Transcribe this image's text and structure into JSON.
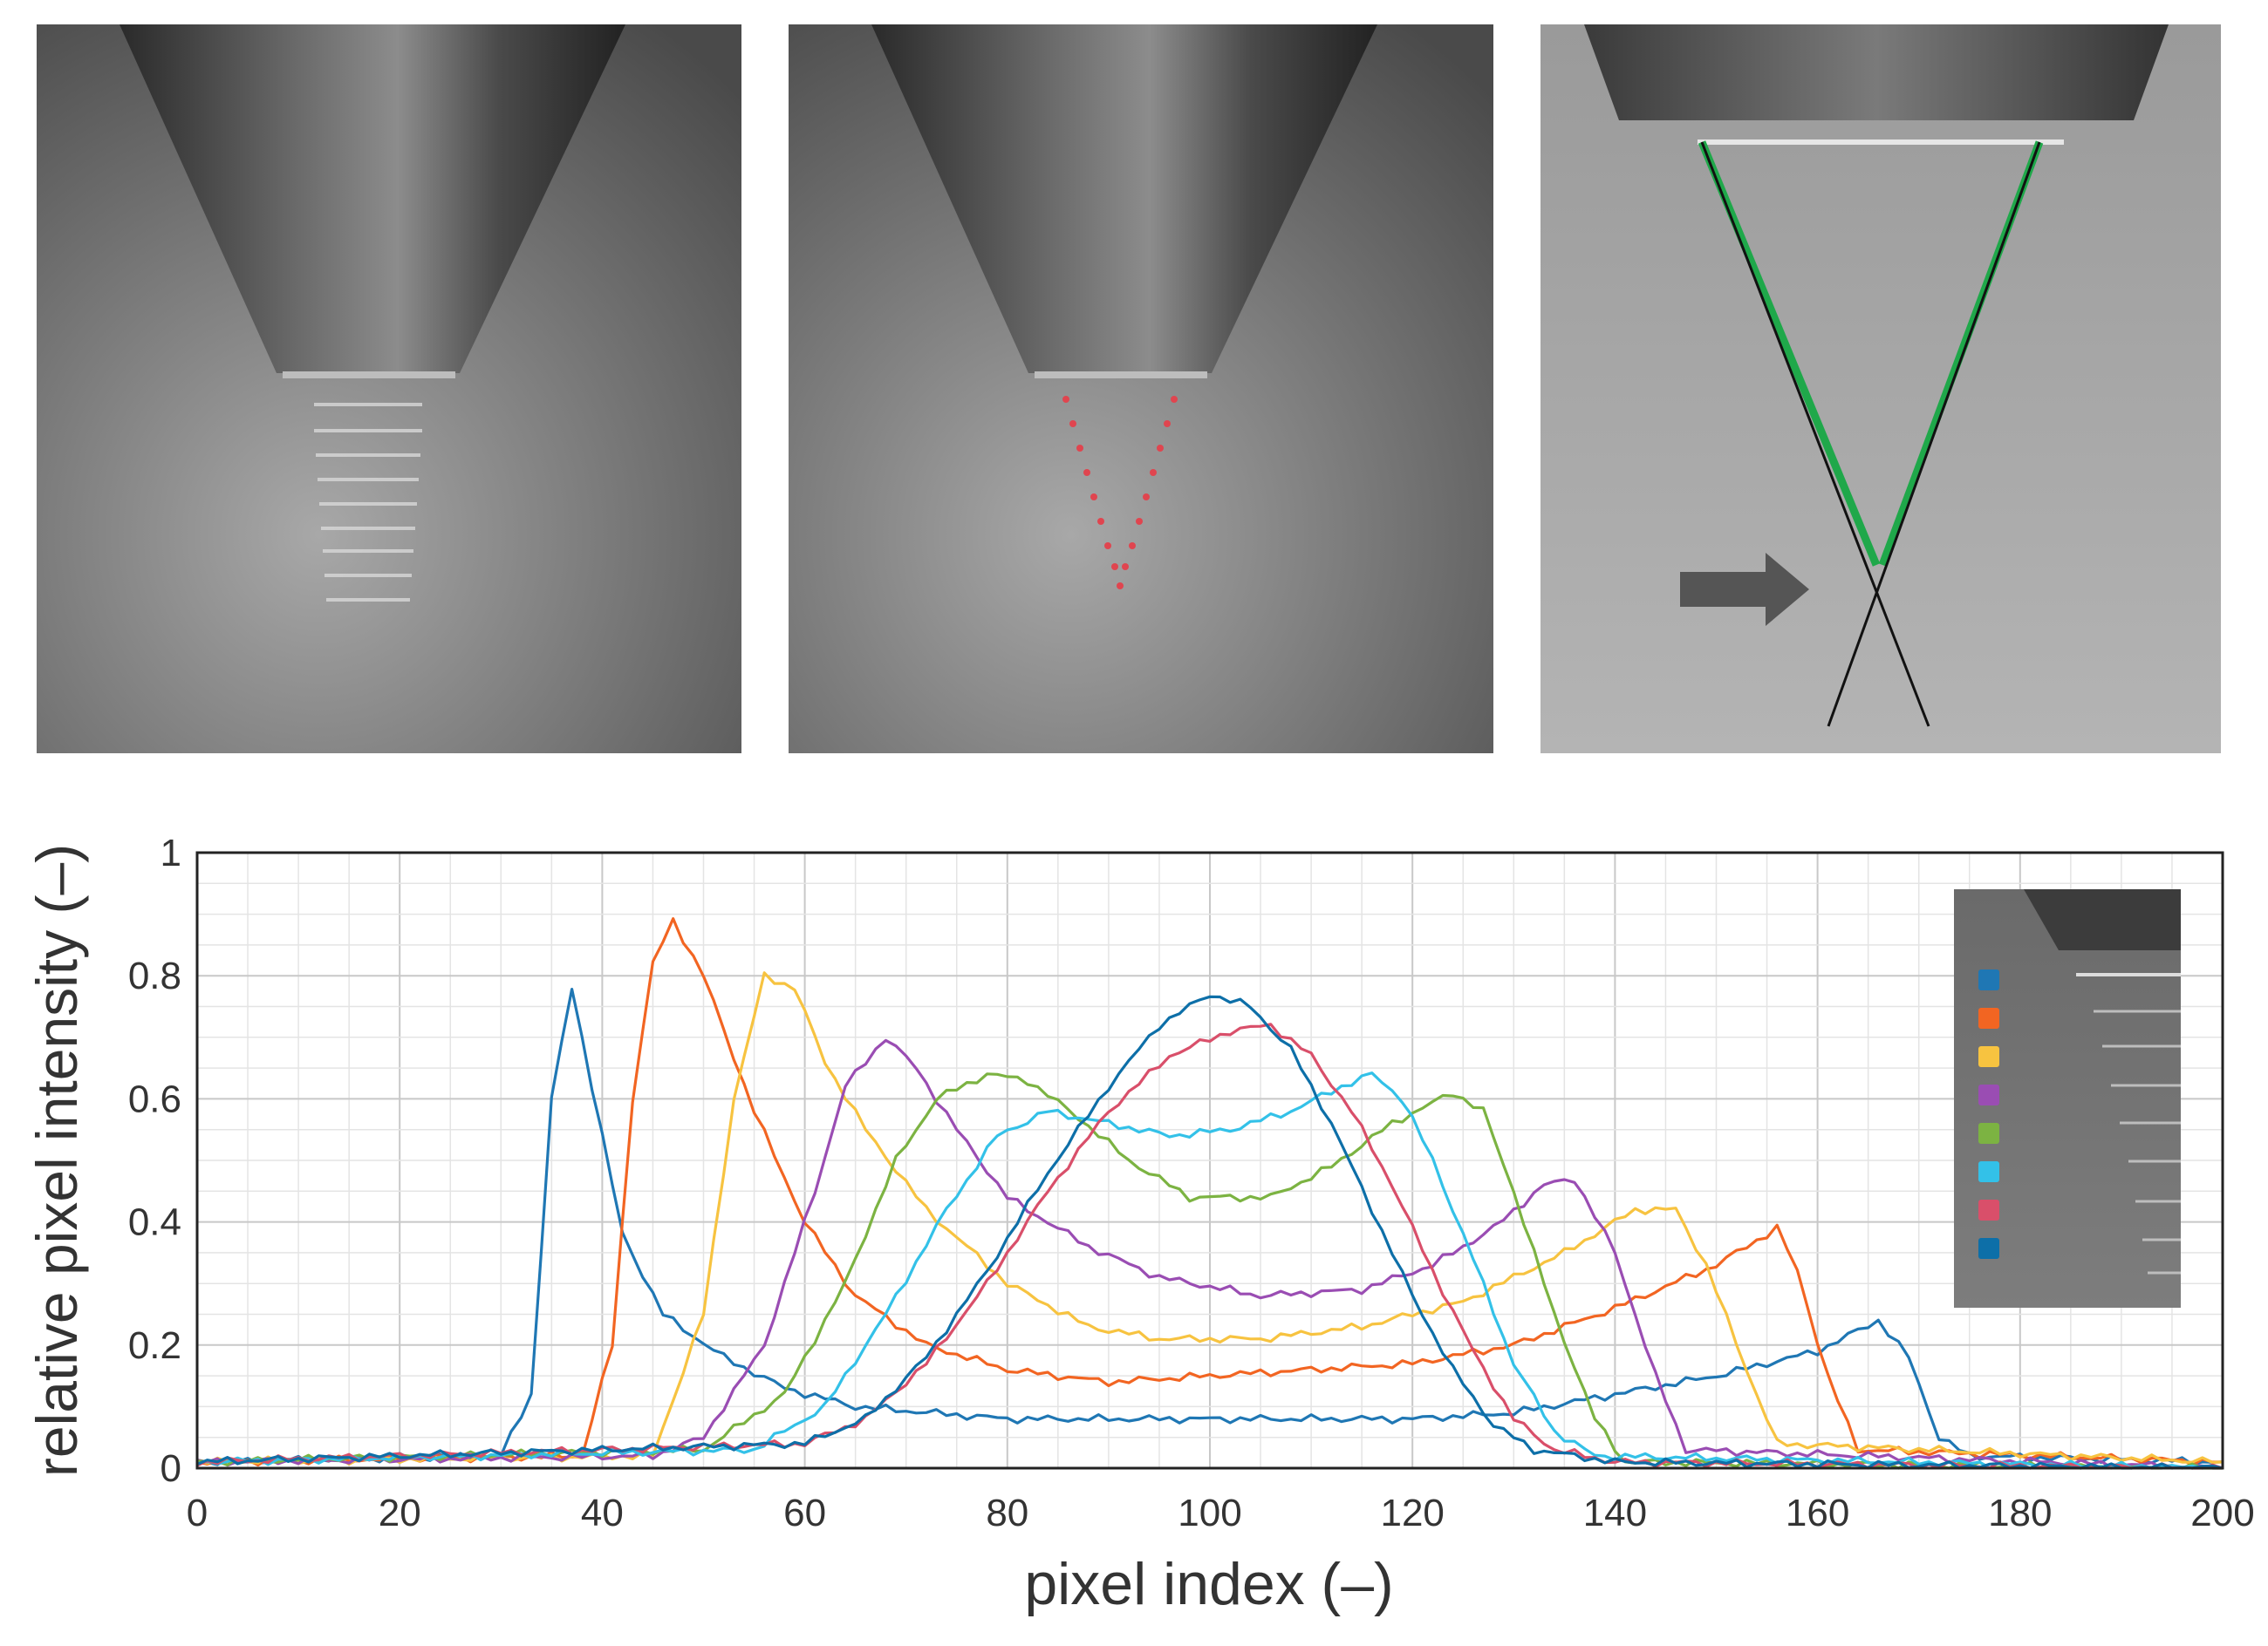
{
  "panels": [
    {
      "name": "nozzle-horizontal-slices",
      "description_icon": "nozzle-photo"
    },
    {
      "name": "nozzle-dotted-edges",
      "description_icon": "nozzle-photo"
    },
    {
      "name": "nozzle-fitted-cone-lines",
      "description_icon": "nozzle-photo"
    }
  ],
  "colors": {
    "blue": "#1f77b4",
    "orange": "#f26522",
    "yellow": "#f7c340",
    "purple": "#9a4db3",
    "green": "#7cb342",
    "cyan": "#33c1e8",
    "red": "#d94f6a",
    "darkblue": "#0d6fa8",
    "fit_line": "#1fa84a",
    "edge_dots": "#e0454f"
  },
  "chart_data": {
    "type": "line",
    "xlabel": "pixel index (–)",
    "ylabel": "relative pixel intensity (–)",
    "xlim": [
      0,
      200
    ],
    "ylim": [
      0,
      1
    ],
    "xticks": [
      "0",
      "20",
      "40",
      "60",
      "80",
      "100",
      "120",
      "140",
      "160",
      "180",
      "200"
    ],
    "yticks": [
      "0",
      "0.2",
      "0.4",
      "0.6",
      "0.8",
      "1"
    ],
    "grid": true,
    "minor_grid": true,
    "legend": "inset-right",
    "series": [
      {
        "color": "#1f77b4",
        "points": [
          [
            0,
            0.01
          ],
          [
            30,
            0.02
          ],
          [
            33,
            0.12
          ],
          [
            35,
            0.6
          ],
          [
            37,
            0.78
          ],
          [
            39,
            0.62
          ],
          [
            42,
            0.38
          ],
          [
            46,
            0.25
          ],
          [
            52,
            0.18
          ],
          [
            58,
            0.13
          ],
          [
            65,
            0.1
          ],
          [
            80,
            0.08
          ],
          [
            100,
            0.08
          ],
          [
            120,
            0.08
          ],
          [
            130,
            0.09
          ],
          [
            140,
            0.12
          ],
          [
            150,
            0.15
          ],
          [
            160,
            0.19
          ],
          [
            166,
            0.24
          ],
          [
            169,
            0.18
          ],
          [
            172,
            0.05
          ],
          [
            175,
            0.02
          ],
          [
            200,
            0.01
          ]
        ]
      },
      {
        "color": "#f26522",
        "points": [
          [
            0,
            0.01
          ],
          [
            38,
            0.02
          ],
          [
            41,
            0.2
          ],
          [
            43,
            0.6
          ],
          [
            45,
            0.82
          ],
          [
            47,
            0.89
          ],
          [
            50,
            0.8
          ],
          [
            55,
            0.58
          ],
          [
            60,
            0.4
          ],
          [
            65,
            0.28
          ],
          [
            72,
            0.2
          ],
          [
            80,
            0.16
          ],
          [
            90,
            0.14
          ],
          [
            100,
            0.15
          ],
          [
            120,
            0.17
          ],
          [
            130,
            0.2
          ],
          [
            140,
            0.26
          ],
          [
            150,
            0.33
          ],
          [
            156,
            0.39
          ],
          [
            158,
            0.32
          ],
          [
            161,
            0.15
          ],
          [
            164,
            0.03
          ],
          [
            200,
            0.01
          ]
        ]
      },
      {
        "color": "#f7c340",
        "points": [
          [
            0,
            0.01
          ],
          [
            45,
            0.02
          ],
          [
            50,
            0.25
          ],
          [
            53,
            0.6
          ],
          [
            56,
            0.8
          ],
          [
            59,
            0.78
          ],
          [
            62,
            0.66
          ],
          [
            66,
            0.55
          ],
          [
            72,
            0.42
          ],
          [
            80,
            0.3
          ],
          [
            88,
            0.23
          ],
          [
            95,
            0.21
          ],
          [
            105,
            0.21
          ],
          [
            115,
            0.23
          ],
          [
            125,
            0.27
          ],
          [
            135,
            0.35
          ],
          [
            142,
            0.42
          ],
          [
            146,
            0.42
          ],
          [
            149,
            0.33
          ],
          [
            153,
            0.16
          ],
          [
            156,
            0.04
          ],
          [
            200,
            0.01
          ]
        ]
      },
      {
        "color": "#9a4db3",
        "points": [
          [
            0,
            0.01
          ],
          [
            45,
            0.02
          ],
          [
            50,
            0.05
          ],
          [
            56,
            0.2
          ],
          [
            61,
            0.45
          ],
          [
            64,
            0.62
          ],
          [
            68,
            0.7
          ],
          [
            71,
            0.65
          ],
          [
            75,
            0.55
          ],
          [
            80,
            0.44
          ],
          [
            88,
            0.36
          ],
          [
            95,
            0.31
          ],
          [
            105,
            0.28
          ],
          [
            115,
            0.29
          ],
          [
            122,
            0.33
          ],
          [
            128,
            0.39
          ],
          [
            133,
            0.46
          ],
          [
            136,
            0.47
          ],
          [
            140,
            0.35
          ],
          [
            144,
            0.15
          ],
          [
            147,
            0.03
          ],
          [
            200,
            0.0
          ]
        ]
      },
      {
        "color": "#7cb342",
        "points": [
          [
            0,
            0.01
          ],
          [
            50,
            0.03
          ],
          [
            58,
            0.12
          ],
          [
            64,
            0.3
          ],
          [
            69,
            0.5
          ],
          [
            73,
            0.6
          ],
          [
            78,
            0.64
          ],
          [
            82,
            0.63
          ],
          [
            87,
            0.57
          ],
          [
            92,
            0.5
          ],
          [
            98,
            0.44
          ],
          [
            106,
            0.44
          ],
          [
            112,
            0.49
          ],
          [
            118,
            0.56
          ],
          [
            124,
            0.61
          ],
          [
            127,
            0.58
          ],
          [
            130,
            0.45
          ],
          [
            134,
            0.25
          ],
          [
            138,
            0.08
          ],
          [
            141,
            0.01
          ],
          [
            200,
            0.0
          ]
        ]
      },
      {
        "color": "#33c1e8",
        "points": [
          [
            0,
            0.01
          ],
          [
            55,
            0.03
          ],
          [
            62,
            0.1
          ],
          [
            68,
            0.25
          ],
          [
            74,
            0.42
          ],
          [
            79,
            0.54
          ],
          [
            84,
            0.58
          ],
          [
            90,
            0.56
          ],
          [
            96,
            0.54
          ],
          [
            102,
            0.55
          ],
          [
            108,
            0.58
          ],
          [
            113,
            0.62
          ],
          [
            116,
            0.64
          ],
          [
            119,
            0.6
          ],
          [
            122,
            0.5
          ],
          [
            126,
            0.34
          ],
          [
            130,
            0.17
          ],
          [
            134,
            0.06
          ],
          [
            138,
            0.02
          ],
          [
            200,
            0.0
          ]
        ]
      },
      {
        "color": "#d94f6a",
        "points": [
          [
            0,
            0.01
          ],
          [
            60,
            0.04
          ],
          [
            66,
            0.08
          ],
          [
            72,
            0.17
          ],
          [
            78,
            0.3
          ],
          [
            84,
            0.45
          ],
          [
            90,
            0.58
          ],
          [
            96,
            0.67
          ],
          [
            102,
            0.71
          ],
          [
            106,
            0.72
          ],
          [
            110,
            0.67
          ],
          [
            114,
            0.58
          ],
          [
            118,
            0.46
          ],
          [
            122,
            0.32
          ],
          [
            126,
            0.19
          ],
          [
            130,
            0.08
          ],
          [
            134,
            0.03
          ],
          [
            140,
            0.01
          ],
          [
            200,
            0.0
          ]
        ]
      },
      {
        "color": "#0d6fa8",
        "points": [
          [
            0,
            0.01
          ],
          [
            60,
            0.04
          ],
          [
            66,
            0.08
          ],
          [
            72,
            0.18
          ],
          [
            78,
            0.32
          ],
          [
            84,
            0.48
          ],
          [
            90,
            0.62
          ],
          [
            95,
            0.72
          ],
          [
            100,
            0.77
          ],
          [
            104,
            0.75
          ],
          [
            108,
            0.68
          ],
          [
            112,
            0.56
          ],
          [
            116,
            0.42
          ],
          [
            120,
            0.28
          ],
          [
            124,
            0.16
          ],
          [
            128,
            0.07
          ],
          [
            132,
            0.03
          ],
          [
            140,
            0.01
          ],
          [
            200,
            0.0
          ]
        ]
      }
    ]
  }
}
